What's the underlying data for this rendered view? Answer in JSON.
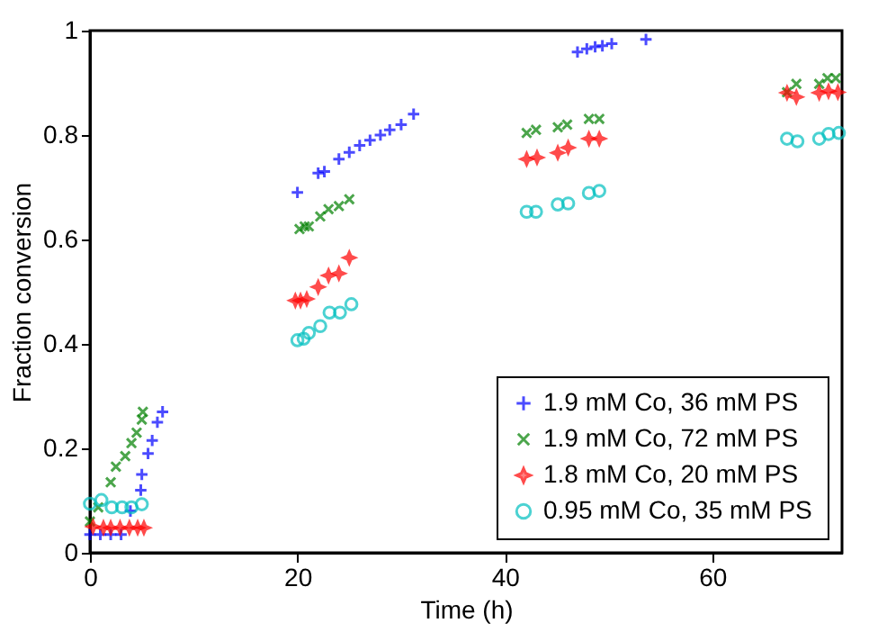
{
  "chart_data": {
    "type": "scatter",
    "xlabel": "Time (h)",
    "ylabel": "Fraction conversion",
    "xlim": [
      0,
      72.5
    ],
    "ylim": [
      0,
      1
    ],
    "xticks": [
      0,
      20,
      40,
      60
    ],
    "yticks": [
      0,
      0.2,
      0.4,
      0.6,
      0.8,
      1
    ],
    "grid": false,
    "legend": "bottom right",
    "series": [
      {
        "name": "1.9 mM Co, 36 mM PS",
        "color": "#0000ff",
        "marker": "cross",
        "x": [
          0,
          1,
          2,
          3,
          3.9,
          4.9,
          5,
          5.6,
          6,
          6.5,
          7,
          20,
          22,
          22.6,
          24,
          25,
          26,
          27,
          28,
          28.9,
          30,
          31.2,
          47,
          47.9,
          48.7,
          49.4,
          50.3,
          53.6
        ],
        "values": [
          0.035,
          0.035,
          0.035,
          0.035,
          0.08,
          0.12,
          0.15,
          0.19,
          0.215,
          0.25,
          0.27,
          0.69,
          0.727,
          0.73,
          0.754,
          0.767,
          0.78,
          0.79,
          0.8,
          0.81,
          0.82,
          0.84,
          0.959,
          0.965,
          0.969,
          0.971,
          0.975,
          0.983
        ]
      },
      {
        "name": "1.9 mM Co, 72 mM PS",
        "color": "#008000",
        "marker": "x",
        "x": [
          0,
          0.8,
          2,
          2.5,
          3.4,
          4,
          4.5,
          5,
          5.1,
          20.2,
          20.7,
          21.1,
          22.2,
          23,
          24,
          25,
          42.1,
          43,
          45.1,
          46,
          48.1,
          49.1,
          67.2,
          68.1,
          70.3,
          71.1,
          71.9
        ],
        "values": [
          0.06,
          0.087,
          0.135,
          0.165,
          0.185,
          0.21,
          0.23,
          0.255,
          0.27,
          0.62,
          0.625,
          0.625,
          0.644,
          0.658,
          0.664,
          0.677,
          0.804,
          0.81,
          0.815,
          0.82,
          0.831,
          0.831,
          0.882,
          0.898,
          0.898,
          0.909,
          0.909
        ]
      },
      {
        "name": "1.8 mM Co, 20 mM PS",
        "color": "#ff0000",
        "marker": "star",
        "x": [
          0.3,
          1.3,
          2,
          2.9,
          3.8,
          4.6,
          5.2,
          19.8,
          20.3,
          20.9,
          22,
          23,
          24,
          25,
          42.1,
          43.1,
          45.1,
          46.1,
          48.1,
          49.1,
          67.2,
          68.1,
          70.3,
          71.2,
          72.1
        ],
        "values": [
          0.05,
          0.048,
          0.048,
          0.048,
          0.048,
          0.048,
          0.048,
          0.483,
          0.483,
          0.486,
          0.509,
          0.531,
          0.535,
          0.565,
          0.754,
          0.757,
          0.766,
          0.776,
          0.793,
          0.793,
          0.881,
          0.873,
          0.881,
          0.884,
          0.882
        ]
      },
      {
        "name": "0.95 mM Co, 35 mM PS",
        "color": "#00bfbf",
        "marker": "circle",
        "x": [
          0,
          1.1,
          2.1,
          3.1,
          4,
          5,
          20,
          20.6,
          21.1,
          22.2,
          23.1,
          24.1,
          25.2,
          42.1,
          43,
          45.1,
          46.1,
          48.1,
          49.1,
          67.2,
          68.2,
          70.3,
          71.2,
          72.2
        ],
        "values": [
          0.094,
          0.101,
          0.087,
          0.087,
          0.087,
          0.093,
          0.407,
          0.41,
          0.421,
          0.434,
          0.46,
          0.46,
          0.476,
          0.653,
          0.653,
          0.667,
          0.669,
          0.689,
          0.693,
          0.793,
          0.788,
          0.793,
          0.802,
          0.804
        ]
      }
    ]
  }
}
